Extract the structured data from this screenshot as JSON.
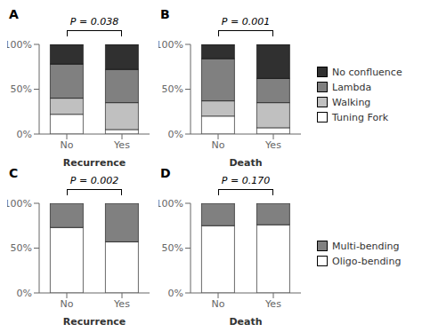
{
  "chart_data": [
    {
      "type": "bar",
      "title": "A",
      "annotation": "P = 0.038",
      "xlabel": "Recurrence",
      "stacked": true,
      "grid": false,
      "categories": [
        "No",
        "Yes"
      ],
      "series": [
        {
          "name": "Tuning Fork",
          "color": "#ffffff",
          "values": [
            0.22,
            0.05
          ]
        },
        {
          "name": "Walking",
          "color": "#c0c0c0",
          "values": [
            0.18,
            0.3
          ]
        },
        {
          "name": "Lambda",
          "color": "#808080",
          "values": [
            0.38,
            0.37
          ]
        },
        {
          "name": "No confluence",
          "color": "#303030",
          "values": [
            0.22,
            0.28
          ]
        }
      ],
      "ylim": [
        0,
        1.0
      ],
      "yticks": [
        {
          "value": 0,
          "label": "0%"
        },
        {
          "value": 0.5,
          "label": "50%"
        },
        {
          "value": 1.0,
          "label": "100%"
        }
      ]
    },
    {
      "type": "bar",
      "title": "B",
      "annotation": "P = 0.001",
      "xlabel": "Death",
      "stacked": true,
      "grid": false,
      "legend": "right",
      "categories": [
        "No",
        "Yes"
      ],
      "series": [
        {
          "name": "Tuning Fork",
          "color": "#ffffff",
          "values": [
            0.2,
            0.07
          ]
        },
        {
          "name": "Walking",
          "color": "#c0c0c0",
          "values": [
            0.17,
            0.28
          ]
        },
        {
          "name": "Lambda",
          "color": "#808080",
          "values": [
            0.47,
            0.27
          ]
        },
        {
          "name": "No confluence",
          "color": "#303030",
          "values": [
            0.16,
            0.38
          ]
        }
      ],
      "ylim": [
        0,
        1.0
      ],
      "yticks": [
        {
          "value": 0,
          "label": "0%"
        },
        {
          "value": 0.5,
          "label": "50%"
        },
        {
          "value": 1.0,
          "label": "100%"
        }
      ]
    },
    {
      "type": "bar",
      "title": "C",
      "annotation": "P = 0.002",
      "xlabel": "Recurrence",
      "stacked": true,
      "grid": false,
      "categories": [
        "No",
        "Yes"
      ],
      "series": [
        {
          "name": "Oligo-bending",
          "color": "#ffffff",
          "values": [
            0.73,
            0.57
          ]
        },
        {
          "name": "Multi-bending",
          "color": "#808080",
          "values": [
            0.27,
            0.43
          ]
        }
      ],
      "ylim": [
        0,
        1.0
      ],
      "yticks": [
        {
          "value": 0,
          "label": "0%"
        },
        {
          "value": 0.5,
          "label": "50%"
        },
        {
          "value": 1.0,
          "label": "100%"
        }
      ]
    },
    {
      "type": "bar",
      "title": "D",
      "annotation": "P = 0.170",
      "xlabel": "Death",
      "stacked": true,
      "grid": false,
      "legend": "right",
      "categories": [
        "No",
        "Yes"
      ],
      "series": [
        {
          "name": "Oligo-bending",
          "color": "#ffffff",
          "values": [
            0.75,
            0.76
          ]
        },
        {
          "name": "Multi-bending",
          "color": "#808080",
          "values": [
            0.25,
            0.24
          ]
        }
      ],
      "ylim": [
        0,
        1.0
      ],
      "yticks": [
        {
          "value": 0,
          "label": "0%"
        },
        {
          "value": 0.5,
          "label": "50%"
        },
        {
          "value": 1.0,
          "label": "100%"
        }
      ]
    }
  ]
}
